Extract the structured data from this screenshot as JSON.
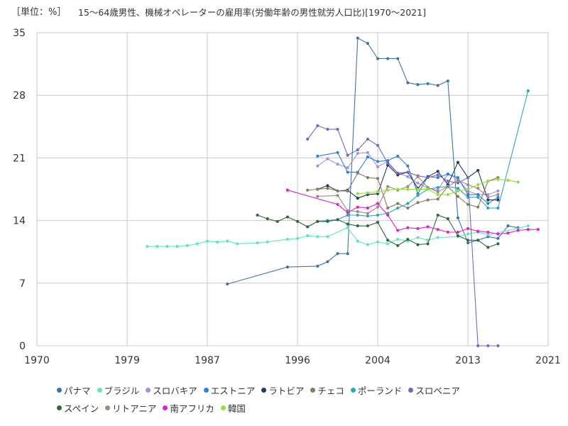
{
  "unit_label": "［単位：%］",
  "title": "15～64歳男性、機械オペレーターの雇用率(労働年齢の男性就労人口比)[1970～2021]",
  "chart_data": {
    "type": "line",
    "title": "15～64歳男性、機械オペレーターの雇用率(労働年齢の男性就労人口比)[1970～2021]",
    "xlim": [
      1970,
      2021
    ],
    "ylim": [
      0,
      35
    ],
    "x_ticks": [
      1970,
      1979,
      1987,
      1996,
      2004,
      2013,
      2021
    ],
    "y_ticks": [
      0,
      7,
      14,
      21,
      28,
      35
    ],
    "grid": true,
    "legend_position": "bottom",
    "series": [
      {
        "name": "パナマ",
        "color": "#3b75a8",
        "x": [
          1989,
          1995,
          1998,
          1999,
          2000,
          2001,
          2002,
          2003,
          2004,
          2005,
          2006,
          2007,
          2008,
          2009,
          2010,
          2011,
          2012,
          2013,
          2014,
          2015,
          2016,
          2017,
          2018
        ],
        "y": [
          6.9,
          8.8,
          8.9,
          9.4,
          10.3,
          10.3,
          34.4,
          33.8,
          32.1,
          32.1,
          32.1,
          29.4,
          29.2,
          29.3,
          29.1,
          29.6,
          14.3,
          11.5,
          11.8,
          12.2,
          12.0,
          13.4,
          13.2
        ]
      },
      {
        "name": "ブラジル",
        "color": "#5ee8b8",
        "x": [
          1981,
          1982,
          1983,
          1984,
          1985,
          1986,
          1987,
          1988,
          1989,
          1990,
          1992,
          1993,
          1995,
          1996,
          1997,
          1998,
          1999,
          2001,
          2002,
          2003,
          2004,
          2005,
          2006,
          2007,
          2008,
          2009,
          2010,
          2012,
          2013,
          2014,
          2015,
          2019
        ],
        "y": [
          11.1,
          11.1,
          11.1,
          11.1,
          11.2,
          11.4,
          11.7,
          11.6,
          11.7,
          11.4,
          11.5,
          11.6,
          11.9,
          12.0,
          12.3,
          12.2,
          12.2,
          13.2,
          11.7,
          11.3,
          11.6,
          11.4,
          11.9,
          11.7,
          12.1,
          11.8,
          12.1,
          12.2,
          12.5,
          12.7,
          12.4,
          13.4
        ]
      },
      {
        "name": "スロバキア",
        "color": "#a58fe6",
        "x": [
          1998,
          1999,
          2000,
          2001,
          2002,
          2003,
          2004,
          2005,
          2006,
          2007,
          2008,
          2009,
          2010,
          2011,
          2012,
          2013,
          2014,
          2015,
          2016
        ],
        "y": [
          20.1,
          20.9,
          20.3,
          19.9,
          21.5,
          21.6,
          20.0,
          20.6,
          19.3,
          18.9,
          18.2,
          17.6,
          17.4,
          19.2,
          18.6,
          17.3,
          16.9,
          16.9,
          17.3
        ]
      },
      {
        "name": "エストニア",
        "color": "#2f80d8",
        "x": [
          1998,
          2000,
          2001,
          2002,
          2003,
          2004,
          2005,
          2006,
          2007,
          2008,
          2009,
          2010,
          2011,
          2012,
          2013,
          2014,
          2015,
          2016
        ],
        "y": [
          21.2,
          21.6,
          19.4,
          19.4,
          21.1,
          20.6,
          20.7,
          21.2,
          20.1,
          17.0,
          18.9,
          18.8,
          19.2,
          18.8,
          16.9,
          16.9,
          15.9,
          16.6
        ]
      },
      {
        "name": "ラトビア",
        "color": "#1a3d5c",
        "x": [
          1998,
          1999,
          2000,
          2001,
          2002,
          2003,
          2004,
          2005,
          2006,
          2007,
          2008,
          2009,
          2010,
          2011,
          2012,
          2013,
          2014,
          2015,
          2016
        ],
        "y": [
          17.5,
          17.9,
          17.3,
          17.4,
          16.5,
          16.9,
          17.0,
          20.2,
          19.1,
          19.4,
          17.6,
          18.9,
          19.5,
          18.0,
          20.5,
          18.8,
          19.6,
          16.3,
          16.3
        ]
      },
      {
        "name": "チェコ",
        "color": "#8a7a62",
        "x": [
          1997,
          1998,
          1999,
          2000,
          2001,
          2002,
          2003,
          2004,
          2005,
          2006,
          2007,
          2008,
          2009,
          2010,
          2011,
          2012,
          2013,
          2014,
          2015,
          2016
        ],
        "y": [
          17.4,
          17.5,
          17.6,
          17.3,
          17.3,
          19.3,
          18.8,
          18.7,
          15.4,
          15.9,
          15.4,
          16.0,
          16.3,
          16.4,
          17.8,
          16.7,
          15.8,
          15.5,
          18.4,
          18.8
        ]
      },
      {
        "name": "ポーランド",
        "color": "#2aa7b8",
        "x": [
          1997,
          1998,
          1999,
          2000,
          2001,
          2002,
          2003,
          2004,
          2005,
          2006,
          2007,
          2008,
          2009,
          2010,
          2011,
          2012,
          2013,
          2014,
          2015,
          2016,
          2019
        ],
        "y": [
          13.3,
          13.9,
          14.0,
          14.1,
          14.6,
          14.6,
          14.5,
          14.6,
          14.8,
          15.4,
          15.9,
          16.8,
          17.5,
          17.7,
          17.8,
          17.6,
          16.6,
          16.6,
          15.4,
          15.4,
          28.5
        ]
      },
      {
        "name": "スロベニア",
        "color": "#7a66c2",
        "x": [
          1997,
          1998,
          1999,
          2000,
          2001,
          2002,
          2003,
          2004,
          2005,
          2006,
          2007,
          2008,
          2009,
          2010,
          2011,
          2012,
          2013,
          2014,
          2015,
          2016
        ],
        "y": [
          23.1,
          24.6,
          24.2,
          24.2,
          21.3,
          21.9,
          23.1,
          22.4,
          20.4,
          19.3,
          19.4,
          19.0,
          18.8,
          19.1,
          18.4,
          18.2,
          18.8,
          0,
          0,
          0
        ]
      },
      {
        "name": "スペイン",
        "color": "#2f6a3a",
        "x": [
          1992,
          1993,
          1994,
          1995,
          1996,
          1997,
          1998,
          1999,
          2000,
          2001,
          2002,
          2003,
          2004,
          2005,
          2006,
          2007,
          2008,
          2009,
          2010,
          2011,
          2012,
          2013,
          2014,
          2015,
          2016
        ],
        "y": [
          14.6,
          14.2,
          13.9,
          14.4,
          13.9,
          13.3,
          13.9,
          13.9,
          14.1,
          13.6,
          13.4,
          13.4,
          13.8,
          11.8,
          11.2,
          11.9,
          11.3,
          11.4,
          14.6,
          14.2,
          12.3,
          11.8,
          11.8,
          11.0,
          11.4
        ]
      },
      {
        "name": "リトアニア",
        "color": "#a08a7a",
        "x": [
          1998,
          2000,
          2001,
          2002,
          2003,
          2004,
          2005,
          2006,
          2007,
          2008,
          2009,
          2010,
          2011,
          2012,
          2013,
          2014,
          2015,
          2016
        ],
        "y": [
          16.7,
          16.8,
          15.1,
          15.0,
          14.8,
          15.5,
          17.8,
          17.4,
          17.8,
          18.9,
          17.7,
          17.2,
          17.8,
          18.5,
          18.0,
          17.6,
          16.6,
          16.9
        ]
      },
      {
        "name": "南アフリカ",
        "color": "#e020c8",
        "x": [
          1995,
          2000,
          2001,
          2002,
          2003,
          2004,
          2005,
          2006,
          2007,
          2008,
          2009,
          2010,
          2011,
          2012,
          2013,
          2014,
          2015,
          2016,
          2017,
          2018,
          2019,
          2020
        ],
        "y": [
          17.4,
          15.8,
          14.9,
          15.5,
          15.4,
          15.9,
          14.6,
          12.9,
          13.2,
          13.1,
          13.3,
          13.0,
          12.7,
          12.7,
          13.1,
          12.8,
          12.7,
          12.5,
          12.6,
          12.9,
          13.0,
          13.0
        ]
      },
      {
        "name": "韓国",
        "color": "#8fe03a",
        "x": [
          2002,
          2003,
          2004,
          2005,
          2006,
          2007,
          2008,
          2009,
          2010,
          2011,
          2012,
          2013,
          2014,
          2015,
          2016,
          2017,
          2018
        ],
        "y": [
          17.0,
          17.1,
          17.2,
          17.4,
          17.5,
          17.5,
          17.5,
          17.5,
          16.9,
          16.9,
          17.3,
          17.5,
          18.0,
          18.4,
          18.6,
          18.5,
          18.3
        ]
      }
    ]
  }
}
